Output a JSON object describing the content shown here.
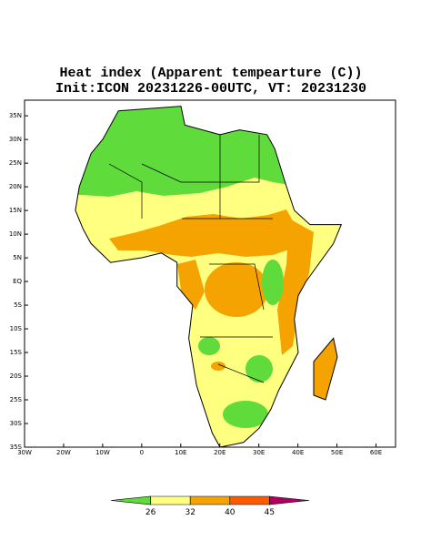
{
  "title": "Heat index (Apparent tempearture (C))",
  "subtitle": "Init:ICON 20231226-00UTC, VT: 20231230",
  "map": {
    "xlim": [
      -30,
      65
    ],
    "ylim": [
      -35,
      38.3
    ],
    "xticks": [
      {
        "value": -30,
        "label": "30W"
      },
      {
        "value": -20,
        "label": "20W"
      },
      {
        "value": -10,
        "label": "10W"
      },
      0,
      {
        "value": 10,
        "label": "10E"
      },
      {
        "value": 20,
        "label": "20E"
      },
      {
        "value": 30,
        "label": "30E"
      },
      {
        "value": 40,
        "label": "40E"
      },
      {
        "value": 50,
        "label": "50E"
      },
      {
        "value": 60,
        "label": "60E"
      }
    ],
    "yticks": [
      {
        "value": 35,
        "label": "35N"
      },
      {
        "value": 30,
        "label": "30N"
      },
      {
        "value": 25,
        "label": "25N"
      },
      {
        "value": 20,
        "label": "20N"
      },
      {
        "value": 15,
        "label": "15N"
      },
      {
        "value": 10,
        "label": "10N"
      },
      {
        "value": 5,
        "label": "5N"
      },
      {
        "value": 0,
        "label": "EQ"
      },
      {
        "value": -5,
        "label": "5S"
      },
      {
        "value": -10,
        "label": "10S"
      },
      {
        "value": -15,
        "label": "15S"
      },
      {
        "value": -20,
        "label": "20S"
      },
      {
        "value": -25,
        "label": "25S"
      },
      {
        "value": -30,
        "label": "30S"
      },
      {
        "value": -35,
        "label": "35S"
      }
    ]
  },
  "colorbar": {
    "levels": [
      26,
      32,
      40,
      45
    ],
    "colors": [
      "#5fdc3c",
      "#ffff80",
      "#f5a300",
      "#ff5a00",
      "#b0005e"
    ]
  }
}
